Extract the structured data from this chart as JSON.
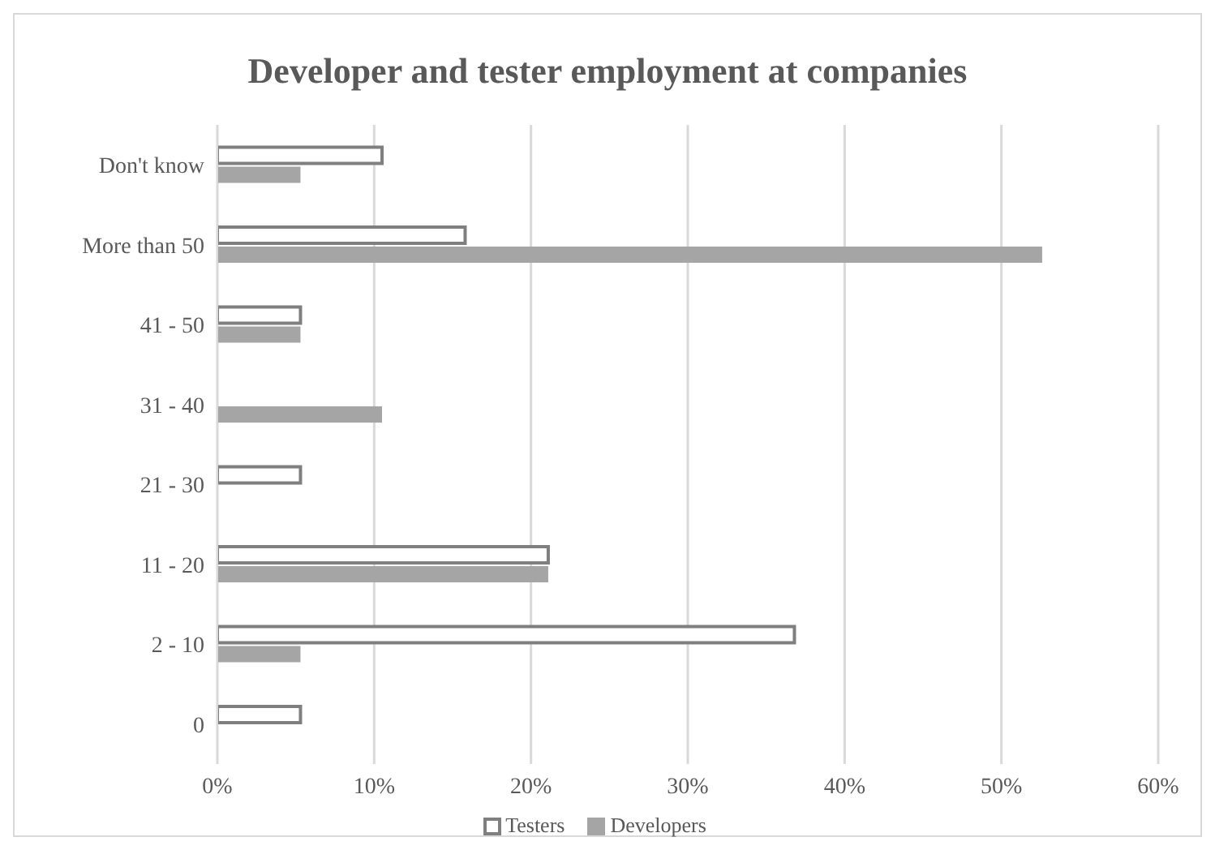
{
  "chart_data": {
    "type": "bar",
    "orientation": "horizontal",
    "title": "Developer and tester employment at companies",
    "categories": [
      "Don't know",
      "More than 50",
      "41 - 50",
      "31 - 40",
      "21 - 30",
      "11 - 20",
      "2 - 10",
      "0"
    ],
    "series": [
      {
        "name": "Testers",
        "color": "#7f7f7f",
        "values": [
          10.5,
          15.8,
          5.3,
          0,
          5.3,
          21.1,
          36.8,
          5.3
        ]
      },
      {
        "name": "Developers",
        "color": "#a5a5a5",
        "values": [
          5.3,
          52.6,
          5.3,
          10.5,
          0,
          21.1,
          5.3,
          0
        ]
      }
    ],
    "xlim": [
      0,
      60
    ],
    "xticks": [
      {
        "value": 0,
        "label": "0%"
      },
      {
        "value": 10,
        "label": "10%"
      },
      {
        "value": 20,
        "label": "20%"
      },
      {
        "value": 30,
        "label": "30%"
      },
      {
        "value": 40,
        "label": "40%"
      },
      {
        "value": 50,
        "label": "50%"
      },
      {
        "value": 60,
        "label": "60%"
      }
    ],
    "grid": "x",
    "legend": "bottom"
  }
}
